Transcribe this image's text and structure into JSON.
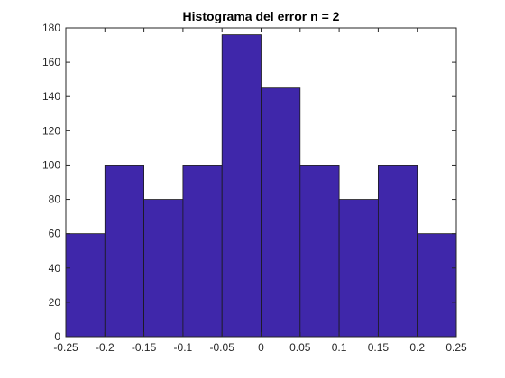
{
  "chart_data": {
    "type": "bar",
    "title": "Histograma del error n = 2",
    "xlabel": "",
    "ylabel": "",
    "bin_edges": [
      -0.25,
      -0.2,
      -0.15,
      -0.1,
      -0.05,
      0,
      0.05,
      0.1,
      0.15,
      0.2,
      0.25
    ],
    "values": [
      60,
      100,
      80,
      100,
      176,
      145,
      100,
      80,
      100,
      60
    ],
    "xlim": [
      -0.25,
      0.25
    ],
    "ylim": [
      0,
      180
    ],
    "x_ticks": [
      -0.25,
      -0.2,
      -0.15,
      -0.1,
      -0.05,
      0,
      0.05,
      0.1,
      0.15,
      0.2,
      0.25
    ],
    "x_tick_labels": [
      "-0.25",
      "-0.2",
      "-0.15",
      "-0.1",
      "-0.05",
      "0",
      "0.05",
      "0.1",
      "0.15",
      "0.2",
      "0.25"
    ],
    "y_ticks": [
      0,
      20,
      40,
      60,
      80,
      100,
      120,
      140,
      160,
      180
    ],
    "y_tick_labels": [
      "0",
      "20",
      "40",
      "60",
      "80",
      "100",
      "120",
      "140",
      "160",
      "180"
    ],
    "grid": false,
    "bar_color": "#3f27aa",
    "edge_color": "#1a1a1a"
  }
}
